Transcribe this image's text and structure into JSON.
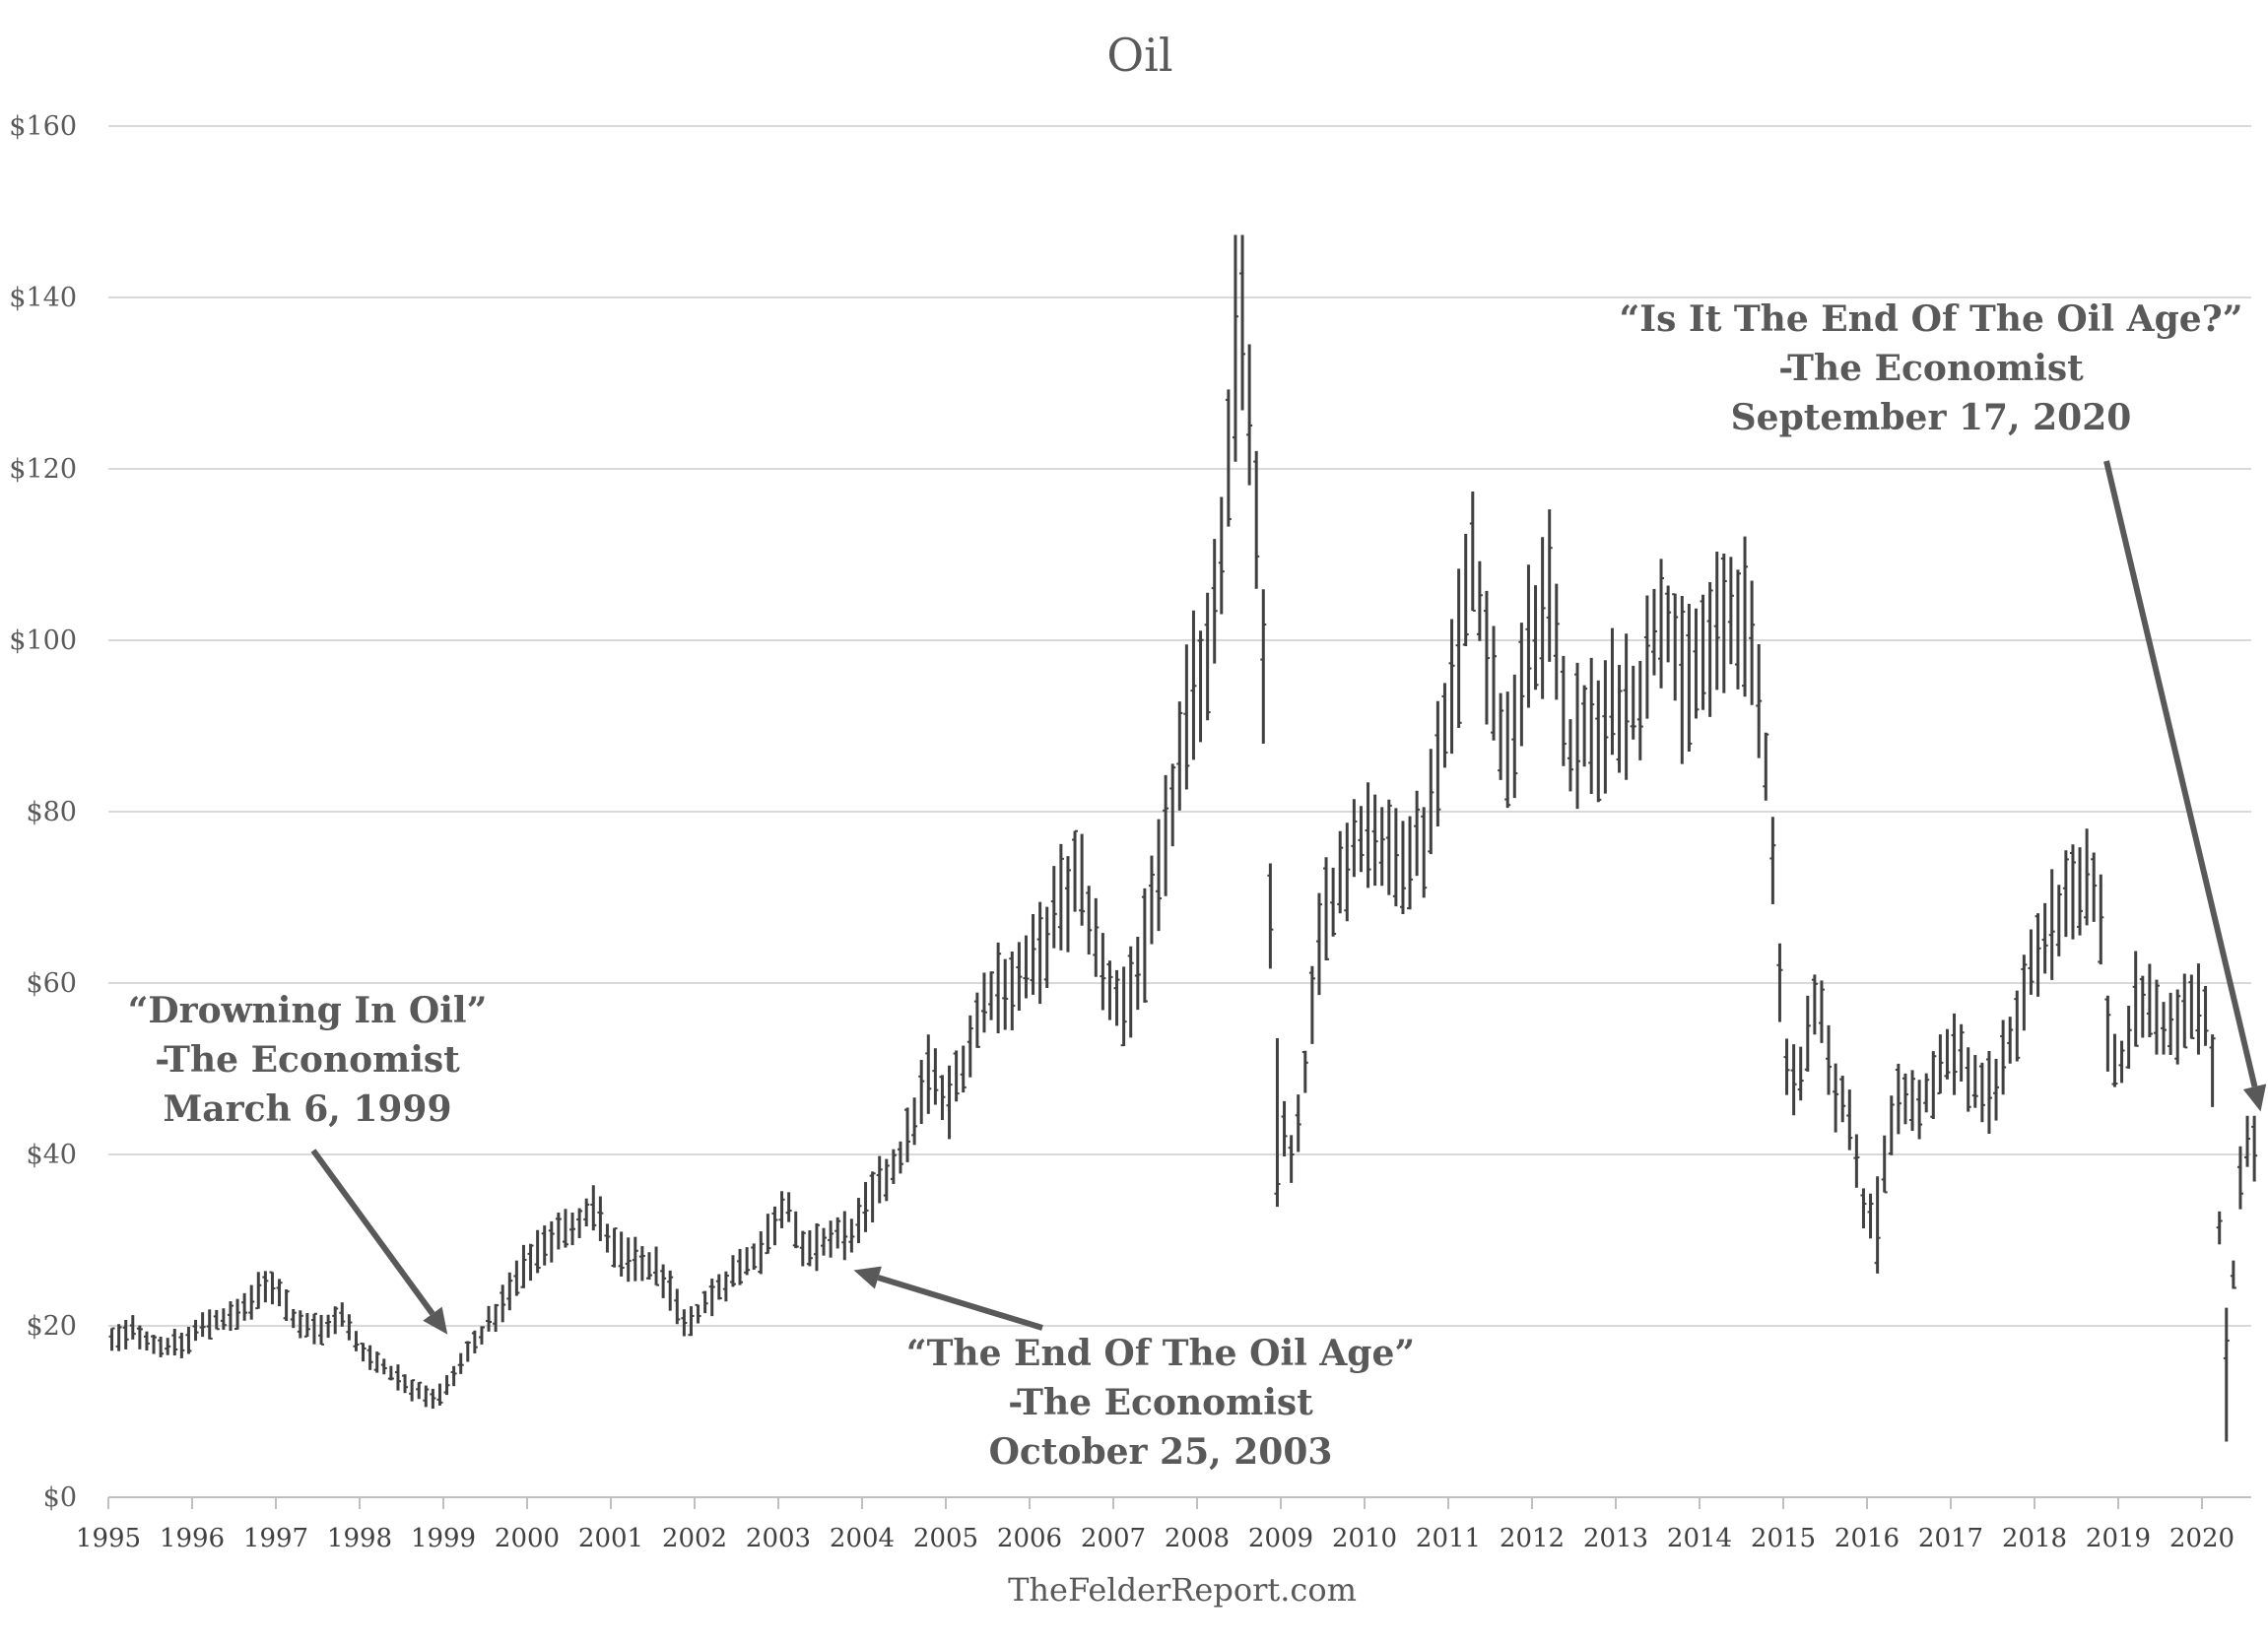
{
  "chart_data": {
    "type": "ohlc",
    "title": "Oil",
    "source": "TheFelderReport.com",
    "y_unit_prefix": "$",
    "ylim": [
      0,
      160
    ],
    "yticks": [
      0,
      20,
      40,
      60,
      80,
      100,
      120,
      140,
      160
    ],
    "ytick_labels": [
      "$0",
      "$20",
      "$40",
      "$60",
      "$80",
      "$100",
      "$120",
      "$140",
      "$160"
    ],
    "xlim": [
      1995,
      2020.7
    ],
    "xticks": [
      1995,
      1996,
      1997,
      1998,
      1999,
      2000,
      2001,
      2002,
      2003,
      2004,
      2005,
      2006,
      2007,
      2008,
      2009,
      2010,
      2011,
      2012,
      2013,
      2014,
      2015,
      2016,
      2017,
      2018,
      2019,
      2020
    ],
    "xtick_labels": [
      "1995",
      "1996",
      "1997",
      "1998",
      "1999",
      "2000",
      "2001",
      "2002",
      "2003",
      "2004",
      "2005",
      "2006",
      "2007",
      "2008",
      "2009",
      "2010",
      "2011",
      "2012",
      "2013",
      "2014",
      "2015",
      "2016",
      "2017",
      "2018",
      "2019",
      "2020"
    ],
    "grid": true,
    "series_anchor_points": [
      [
        1995.0,
        18.0
      ],
      [
        1995.3,
        19.5
      ],
      [
        1995.6,
        17.5
      ],
      [
        1995.9,
        18.0
      ],
      [
        1996.2,
        20.5
      ],
      [
        1996.5,
        21.0
      ],
      [
        1996.8,
        24.0
      ],
      [
        1997.0,
        25.0
      ],
      [
        1997.2,
        21.0
      ],
      [
        1997.5,
        19.5
      ],
      [
        1997.8,
        21.0
      ],
      [
        1998.0,
        17.5
      ],
      [
        1998.3,
        15.0
      ],
      [
        1998.6,
        13.0
      ],
      [
        1998.9,
        11.5
      ],
      [
        1999.0,
        12.0
      ],
      [
        1999.3,
        17.0
      ],
      [
        1999.6,
        21.0
      ],
      [
        1999.9,
        26.0
      ],
      [
        2000.2,
        30.0
      ],
      [
        2000.5,
        31.0
      ],
      [
        2000.8,
        34.0
      ],
      [
        2001.0,
        29.0
      ],
      [
        2001.3,
        27.5
      ],
      [
        2001.6,
        26.5
      ],
      [
        2001.9,
        19.5
      ],
      [
        2002.2,
        23.5
      ],
      [
        2002.5,
        26.5
      ],
      [
        2002.8,
        29.0
      ],
      [
        2003.1,
        35.0
      ],
      [
        2003.3,
        28.0
      ],
      [
        2003.6,
        30.0
      ],
      [
        2003.9,
        31.0
      ],
      [
        2004.2,
        36.0
      ],
      [
        2004.5,
        40.0
      ],
      [
        2004.8,
        50.0
      ],
      [
        2005.0,
        45.0
      ],
      [
        2005.3,
        53.0
      ],
      [
        2005.6,
        60.0
      ],
      [
        2005.9,
        60.0
      ],
      [
        2006.1,
        63.0
      ],
      [
        2006.4,
        70.0
      ],
      [
        2006.6,
        72.0
      ],
      [
        2006.9,
        60.0
      ],
      [
        2007.1,
        57.0
      ],
      [
        2007.4,
        65.0
      ],
      [
        2007.6,
        75.0
      ],
      [
        2007.9,
        92.0
      ],
      [
        2008.1,
        98.0
      ],
      [
        2008.3,
        112.0
      ],
      [
        2008.45,
        133.0
      ],
      [
        2008.55,
        140.0
      ],
      [
        2008.65,
        122.0
      ],
      [
        2008.8,
        95.0
      ],
      [
        2008.9,
        60.0
      ],
      [
        2009.0,
        44.0
      ],
      [
        2009.15,
        38.0
      ],
      [
        2009.3,
        50.0
      ],
      [
        2009.5,
        68.0
      ],
      [
        2009.7,
        72.0
      ],
      [
        2009.9,
        77.0
      ],
      [
        2010.1,
        78.0
      ],
      [
        2010.3,
        74.0
      ],
      [
        2010.5,
        76.0
      ],
      [
        2010.7,
        76.0
      ],
      [
        2010.9,
        88.0
      ],
      [
        2011.1,
        98.0
      ],
      [
        2011.3,
        110.0
      ],
      [
        2011.5,
        96.0
      ],
      [
        2011.7,
        85.0
      ],
      [
        2011.9,
        97.0
      ],
      [
        2012.1,
        103.0
      ],
      [
        2012.25,
        105.0
      ],
      [
        2012.45,
        86.0
      ],
      [
        2012.6,
        90.0
      ],
      [
        2012.8,
        89.0
      ],
      [
        2013.0,
        93.0
      ],
      [
        2013.3,
        93.0
      ],
      [
        2013.55,
        105.0
      ],
      [
        2013.8,
        95.0
      ],
      [
        2014.0,
        97.0
      ],
      [
        2014.3,
        102.0
      ],
      [
        2014.5,
        104.0
      ],
      [
        2014.7,
        93.0
      ],
      [
        2014.85,
        80.0
      ],
      [
        2015.0,
        52.0
      ],
      [
        2015.2,
        48.0
      ],
      [
        2015.4,
        60.0
      ],
      [
        2015.6,
        47.0
      ],
      [
        2015.8,
        45.0
      ],
      [
        2016.0,
        31.0
      ],
      [
        2016.2,
        38.0
      ],
      [
        2016.4,
        48.0
      ],
      [
        2016.6,
        45.0
      ],
      [
        2016.8,
        49.0
      ],
      [
        2017.0,
        53.0
      ],
      [
        2017.3,
        48.0
      ],
      [
        2017.5,
        47.0
      ],
      [
        2017.8,
        56.0
      ],
      [
        2018.0,
        63.0
      ],
      [
        2018.3,
        68.0
      ],
      [
        2018.55,
        70.0
      ],
      [
        2018.75,
        72.0
      ],
      [
        2018.9,
        52.0
      ],
      [
        2019.0,
        49.0
      ],
      [
        2019.2,
        58.0
      ],
      [
        2019.4,
        57.0
      ],
      [
        2019.6,
        54.0
      ],
      [
        2019.8,
        56.0
      ],
      [
        2020.0,
        58.0
      ],
      [
        2020.15,
        48.0
      ],
      [
        2020.25,
        20.0
      ],
      [
        2020.35,
        22.0
      ],
      [
        2020.45,
        37.0
      ],
      [
        2020.55,
        41.0
      ],
      [
        2020.7,
        40.0
      ]
    ],
    "key_extremes": [
      {
        "x": 1998.95,
        "low": 10.7
      },
      {
        "x": 2008.5,
        "high": 147.3
      },
      {
        "x": 2008.95,
        "low": 33.9
      },
      {
        "x": 2016.1,
        "low": 26.1
      },
      {
        "x": 2020.3,
        "low": 6.5
      }
    ],
    "annotations": [
      {
        "lines": [
          "“Drowning In Oil”",
          "-The Economist",
          "March 6, 1999"
        ],
        "arrow_target": [
          1999.05,
          19.0
        ]
      },
      {
        "lines": [
          "“The End Of The Oil Age”",
          "-The Economist",
          "October 25, 2003"
        ],
        "arrow_target": [
          2003.9,
          26.5
        ]
      },
      {
        "lines": [
          "“Is It The End Of The Oil Age?”",
          "-The Economist",
          "September 17, 2020"
        ],
        "arrow_target": [
          2020.7,
          45.0
        ]
      }
    ]
  },
  "colors": {
    "bars": "#404040",
    "grid": "#d9d9d9",
    "text": "#595959",
    "annotation": "#595959"
  }
}
